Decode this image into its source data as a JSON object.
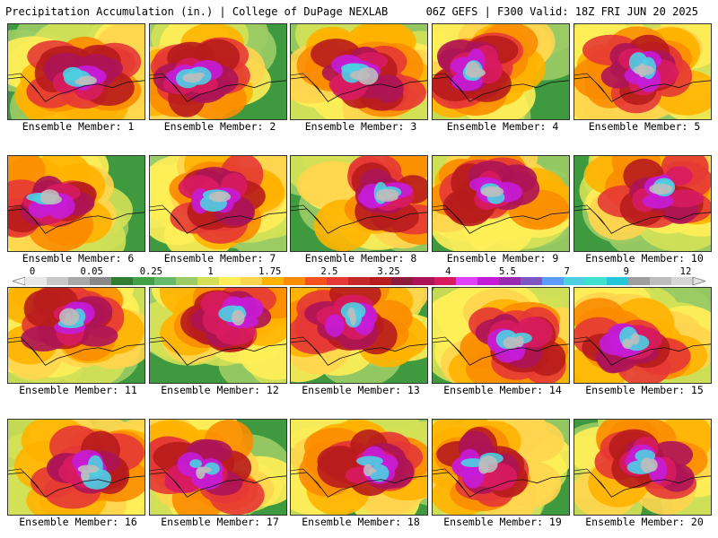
{
  "header": {
    "left_title": "Precipitation Accumulation (in.) | College of DuPage NEXLAB",
    "right_title": "06Z GEFS | F300 Valid: 18Z FRI JUN 20 2025"
  },
  "members": [
    {
      "label": "Ensemble Member: 1"
    },
    {
      "label": "Ensemble Member: 2"
    },
    {
      "label": "Ensemble Member: 3"
    },
    {
      "label": "Ensemble Member: 4"
    },
    {
      "label": "Ensemble Member: 5"
    },
    {
      "label": "Ensemble Member: 6"
    },
    {
      "label": "Ensemble Member: 7"
    },
    {
      "label": "Ensemble Member: 8"
    },
    {
      "label": "Ensemble Member: 9"
    },
    {
      "label": "Ensemble Member: 10"
    },
    {
      "label": "Ensemble Member: 11"
    },
    {
      "label": "Ensemble Member: 12"
    },
    {
      "label": "Ensemble Member: 13"
    },
    {
      "label": "Ensemble Member: 14"
    },
    {
      "label": "Ensemble Member: 15"
    },
    {
      "label": "Ensemble Member: 16"
    },
    {
      "label": "Ensemble Member: 17"
    },
    {
      "label": "Ensemble Member: 18"
    },
    {
      "label": "Ensemble Member: 19"
    },
    {
      "label": "Ensemble Member: 20"
    }
  ],
  "colorbar": {
    "tick_labels": [
      "0",
      "0.05",
      "0.25",
      "1",
      "1.75",
      "2.5",
      "3.25",
      "4",
      "5.5",
      "7",
      "9",
      "12"
    ],
    "colors": [
      "#e8e8e8",
      "#c8c8c8",
      "#a8a8a8",
      "#888888",
      "#2e7d32",
      "#43a047",
      "#66bb6a",
      "#9ccc65",
      "#d4e157",
      "#ffee58",
      "#ffd54f",
      "#ffb300",
      "#fb8c00",
      "#f4511e",
      "#e53935",
      "#c62828",
      "#b71c1c",
      "#8e1b3c",
      "#ad1457",
      "#d81b60",
      "#e040fb",
      "#c51cd8",
      "#9c27b0",
      "#7e57c2",
      "#5c9cff",
      "#4dd0e1",
      "#40e0d0",
      "#26c6da",
      "#9e9e9e",
      "#bdbdbd",
      "#d6d6d6"
    ]
  }
}
